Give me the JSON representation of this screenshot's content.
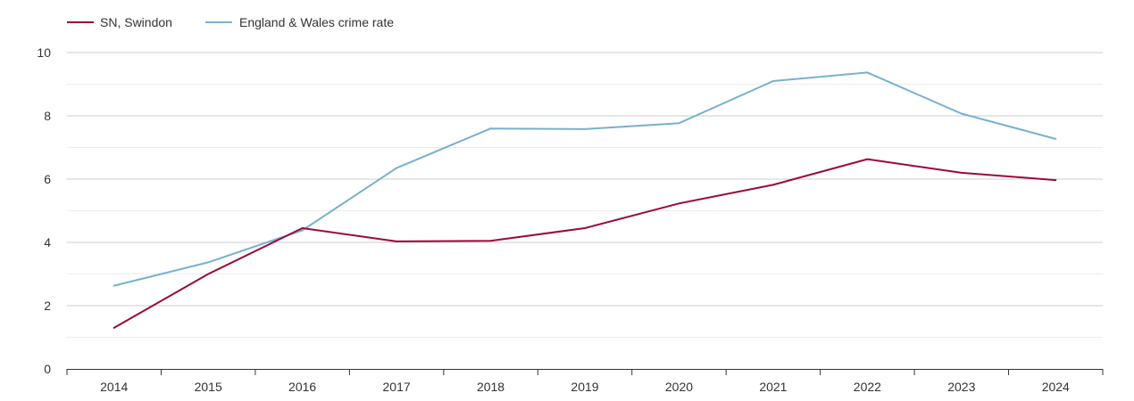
{
  "chart_data": {
    "type": "line",
    "title": "",
    "xlabel": "",
    "ylabel": "",
    "categories": [
      "2014",
      "2015",
      "2016",
      "2017",
      "2018",
      "2019",
      "2020",
      "2021",
      "2022",
      "2023",
      "2024"
    ],
    "ylim": [
      0,
      10
    ],
    "yticks": [
      "0",
      "2",
      "4",
      "6",
      "8",
      "10"
    ],
    "grid": true,
    "legend_position": "top-left",
    "series": [
      {
        "name": "SN, Swindon",
        "color": "#9b0a36",
        "values": [
          1.3,
          3.0,
          4.45,
          4.03,
          4.05,
          4.45,
          5.23,
          5.82,
          6.63,
          6.2,
          5.97
        ]
      },
      {
        "name": "England & Wales crime rate",
        "color": "#78b0cf",
        "values": [
          2.63,
          3.37,
          4.38,
          6.35,
          7.6,
          7.58,
          7.77,
          9.1,
          9.37,
          8.07,
          7.27
        ]
      }
    ]
  }
}
